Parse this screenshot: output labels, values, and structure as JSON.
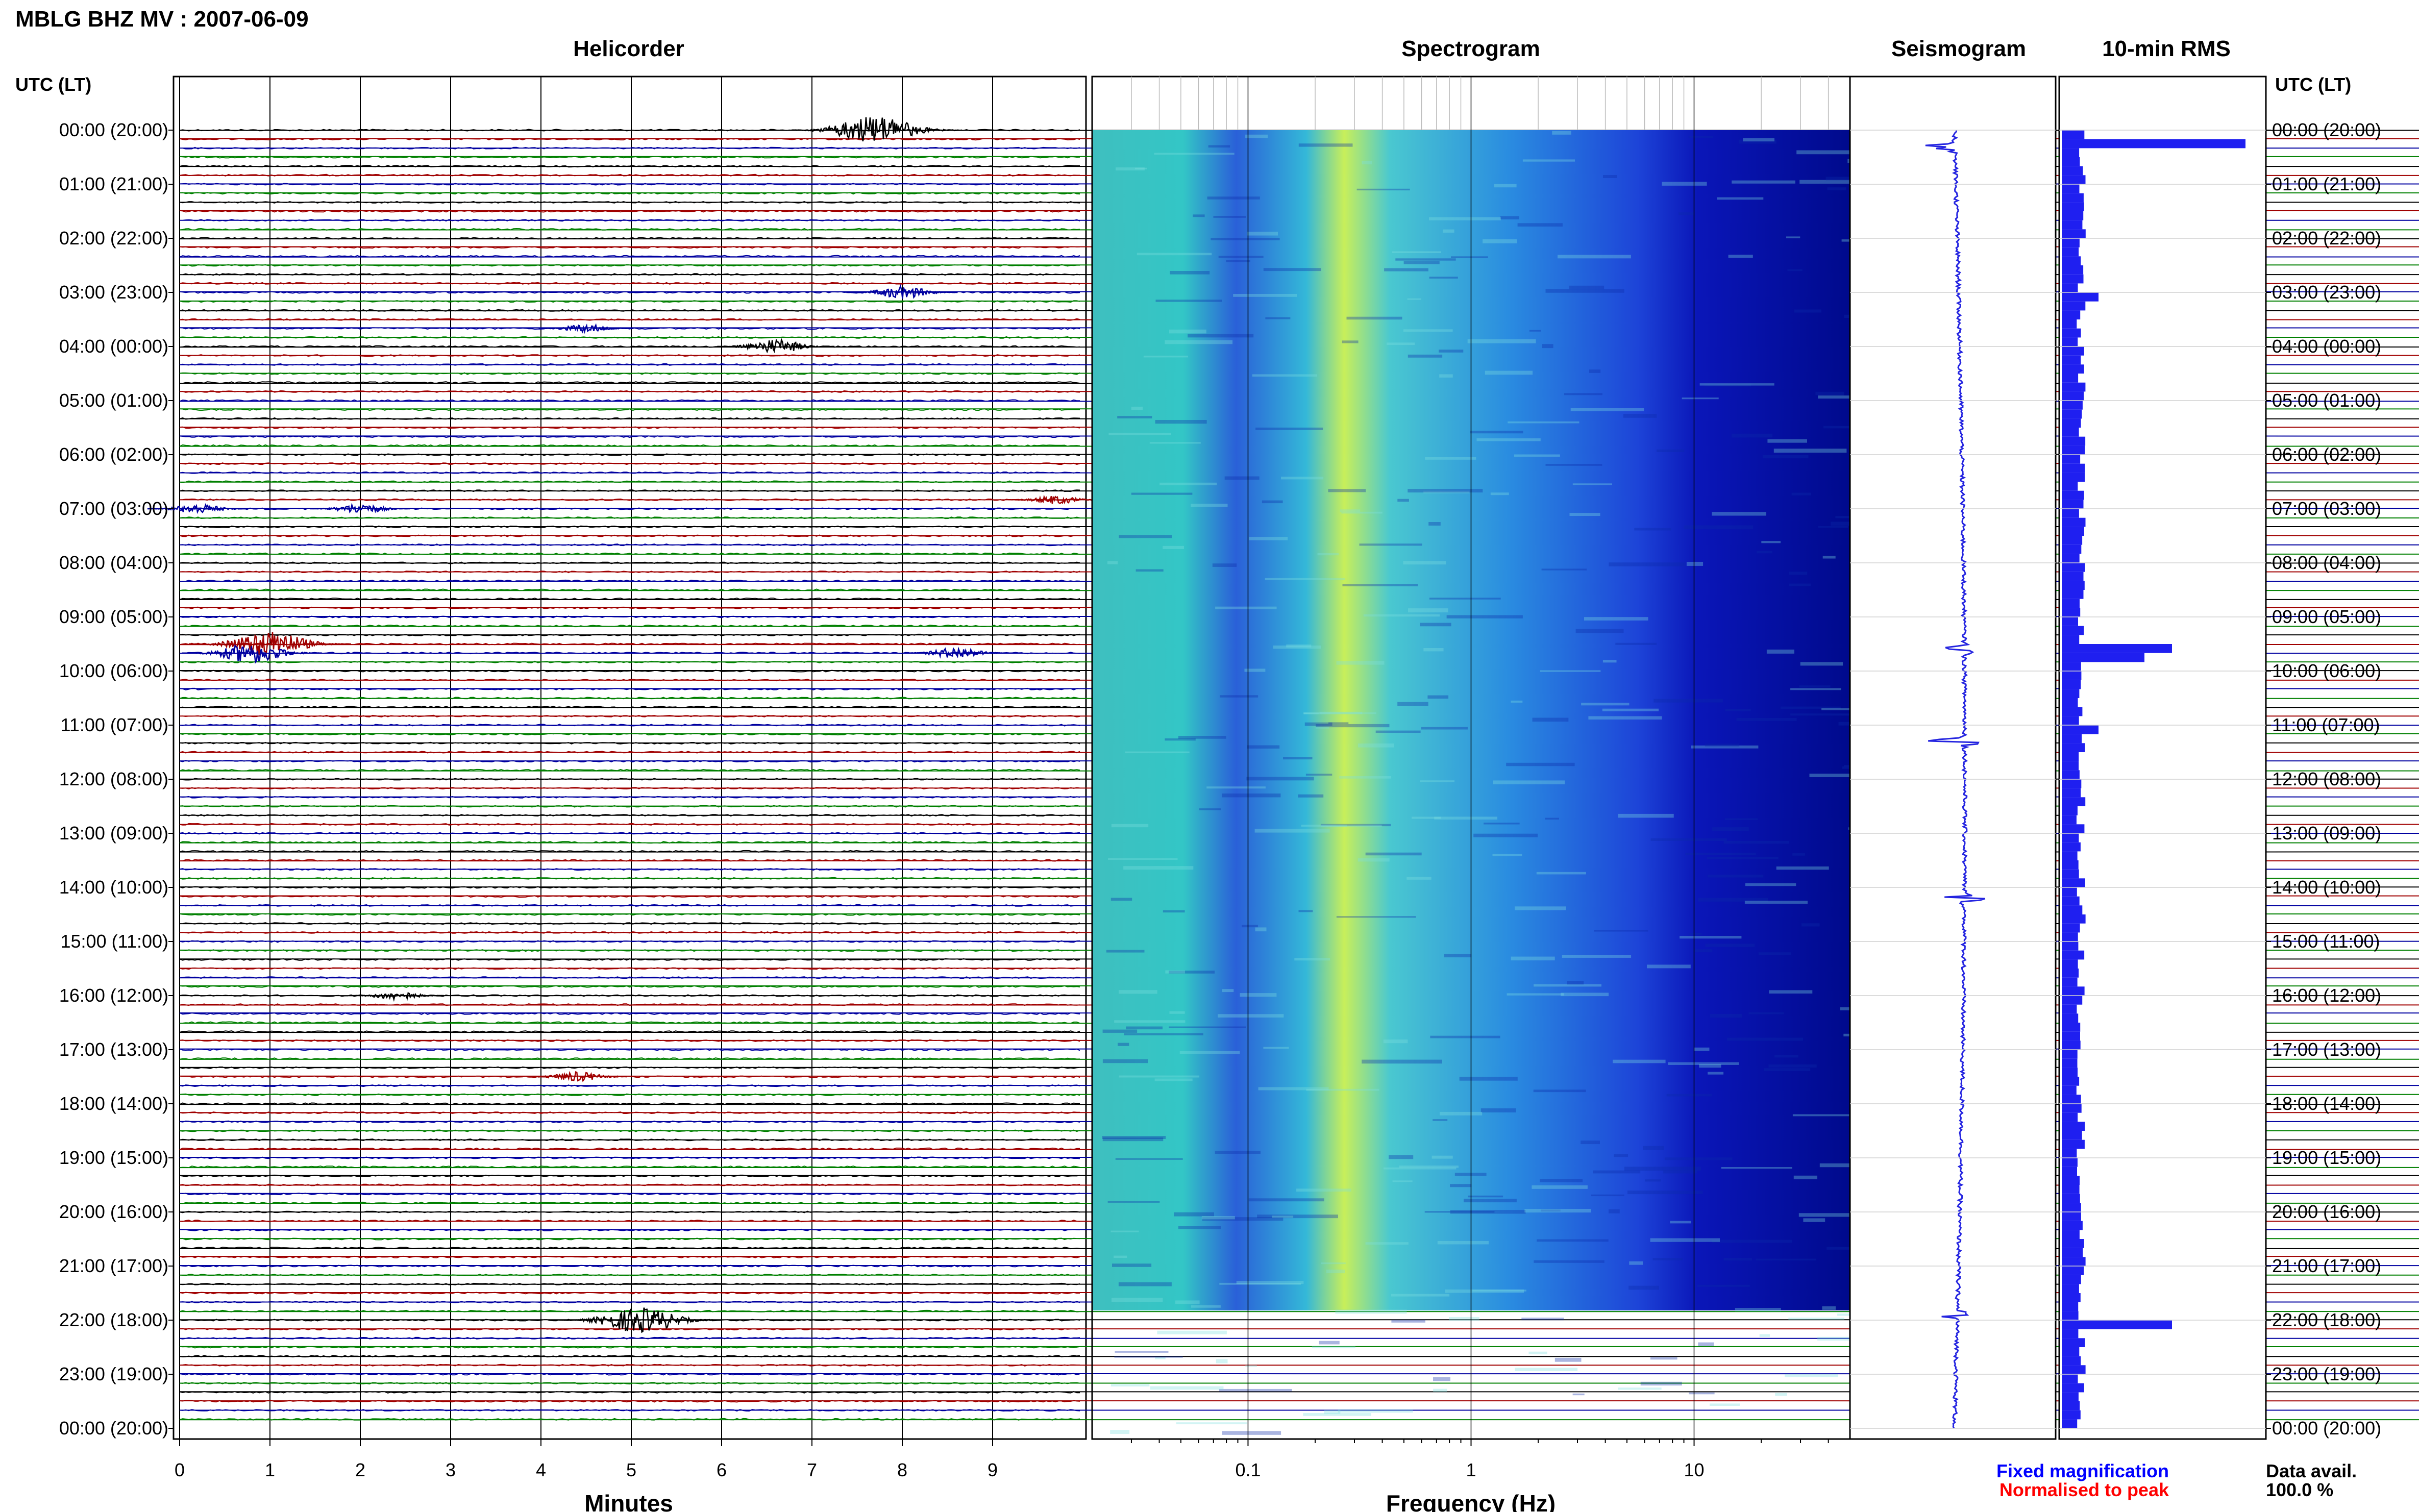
{
  "header": {
    "title": "MBLG BHZ MV : 2007-06-09",
    "utc_label_left": "UTC (LT)",
    "utc_label_right": "UTC (LT)"
  },
  "footer": {
    "fixed_magnification": "Fixed magnification",
    "normalised_to_peak": "Normalised to peak",
    "data_avail_label": "Data avail.",
    "data_avail_value": "100.0 %"
  },
  "colors": {
    "trace_cycle": [
      "#000000",
      "#a00000",
      "#0000a0",
      "#008000"
    ],
    "rms_bar": "#1f1ff0",
    "seismo_trace": "#2424e0",
    "fixed_magnification": "#0000ff",
    "normalised_to_peak": "#ff0000"
  },
  "chart_data": [
    {
      "type": "helicorder",
      "title": "Helicorder",
      "xlabel": "Minutes",
      "xlim": [
        0,
        10
      ],
      "x_ticks": [
        "0",
        "1",
        "2",
        "3",
        "4",
        "5",
        "6",
        "7",
        "8",
        "9"
      ],
      "row_labels": [
        "00:00 (20:00)",
        "01:00 (21:00)",
        "02:00 (22:00)",
        "03:00 (23:00)",
        "04:00 (00:00)",
        "05:00 (01:00)",
        "06:00 (02:00)",
        "07:00 (03:00)",
        "08:00 (04:00)",
        "09:00 (05:00)",
        "10:00 (06:00)",
        "11:00 (07:00)",
        "12:00 (08:00)",
        "13:00 (09:00)",
        "14:00 (10:00)",
        "15:00 (11:00)",
        "16:00 (12:00)",
        "17:00 (13:00)",
        "18:00 (14:00)",
        "19:00 (15:00)",
        "20:00 (16:00)",
        "21:00 (17:00)",
        "22:00 (18:00)",
        "23:00 (19:00)",
        "00:00 (20:00)"
      ],
      "lines_per_hour": 6,
      "events": [
        {
          "line": 0,
          "minute": 7.7,
          "amplitude": 1.0
        },
        {
          "line": 18,
          "minute": 8.0,
          "amplitude": 0.45
        },
        {
          "line": 22,
          "minute": 4.5,
          "amplitude": 0.3
        },
        {
          "line": 24,
          "minute": 6.6,
          "amplitude": 0.5
        },
        {
          "line": 57,
          "minute": 1.0,
          "amplitude": 0.9
        },
        {
          "line": 58,
          "minute": 0.8,
          "amplitude": 0.7
        },
        {
          "line": 58,
          "minute": 8.6,
          "amplitude": 0.4
        },
        {
          "line": 96,
          "minute": 2.4,
          "amplitude": 0.3
        },
        {
          "line": 105,
          "minute": 4.4,
          "amplitude": 0.35
        },
        {
          "line": 132,
          "minute": 5.1,
          "amplitude": 0.9
        },
        {
          "line": 42,
          "minute": 0.2,
          "amplitude": 0.35
        },
        {
          "line": 42,
          "minute": 2.0,
          "amplitude": 0.35
        },
        {
          "line": 41,
          "minute": 9.7,
          "amplitude": 0.3
        }
      ]
    },
    {
      "type": "heatmap",
      "title": "Spectrogram",
      "xlabel": "Frequency (Hz)",
      "x_scale": "log",
      "xlim": [
        0.02,
        50
      ],
      "x_ticks": [
        "0.1",
        "1",
        "10"
      ],
      "hotspot_hz": 0.27
    },
    {
      "type": "line",
      "title": "Seismogram",
      "peaks": [
        {
          "hour": 0.3,
          "amplitude": 1.0
        },
        {
          "hour": 9.6,
          "amplitude": 0.55
        },
        {
          "hour": 11.3,
          "amplitude": 0.8
        },
        {
          "hour": 14.2,
          "amplitude": 0.5
        },
        {
          "hour": 21.9,
          "amplitude": 0.6
        }
      ]
    },
    {
      "type": "bar",
      "title": "10-min RMS",
      "orientation": "horizontal",
      "bins_per_hour": 6,
      "peaks": [
        {
          "bin": 1,
          "value": 1.0
        },
        {
          "bin": 57,
          "value": 0.6
        },
        {
          "bin": 58,
          "value": 0.45
        },
        {
          "bin": 132,
          "value": 0.6
        },
        {
          "bin": 18,
          "value": 0.2
        },
        {
          "bin": 66,
          "value": 0.2
        }
      ]
    }
  ]
}
